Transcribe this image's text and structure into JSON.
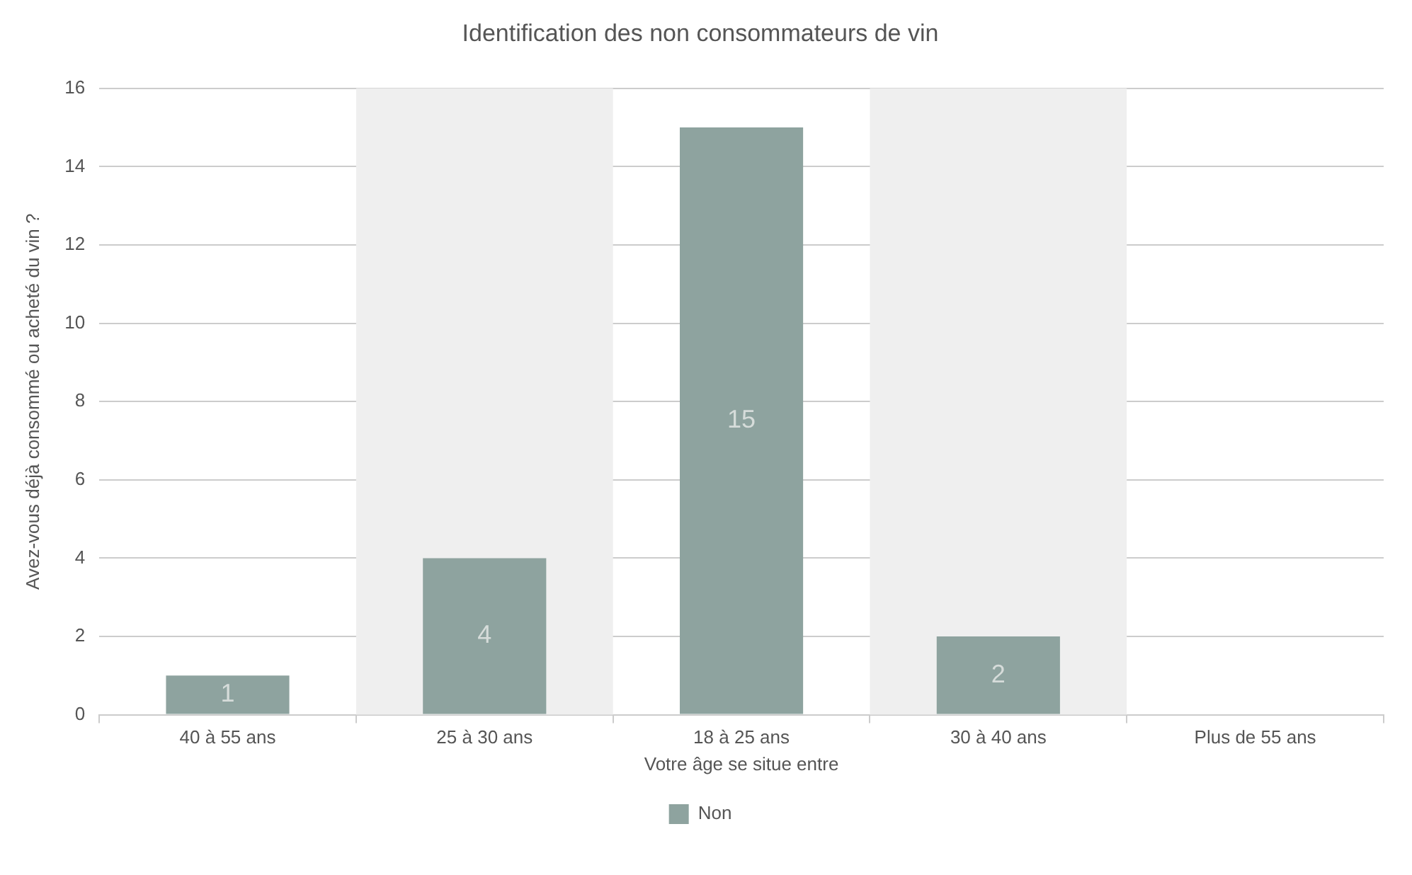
{
  "chart_data": {
    "type": "bar",
    "title": "Identification des non consommateurs de vin",
    "xlabel": "Votre âge se situe entre",
    "ylabel": "Avez-vous déjà consommé ou acheté du vin ?",
    "categories": [
      "40 à 55 ans",
      "25 à 30 ans",
      "18 à 25 ans",
      "30 à 40 ans",
      "Plus de 55 ans"
    ],
    "series": [
      {
        "name": "Non",
        "color": "#8ea39f",
        "values": [
          1,
          4,
          15,
          2,
          0
        ],
        "value_labels": [
          "1",
          "4",
          "15",
          "2",
          null
        ]
      }
    ],
    "ylim": [
      0,
      16
    ],
    "yticks": [
      0,
      2,
      4,
      6,
      8,
      10,
      12,
      14,
      16
    ],
    "grid": "y",
    "legend": "bottom",
    "bands": [
      {
        "axis": "x",
        "from": "25 à 30 ans",
        "to": "25 à 30 ans",
        "color": "#efefef"
      },
      {
        "axis": "x",
        "from": "30 à 40 ans",
        "to": "30 à 40 ans",
        "color": "#efefef"
      }
    ]
  }
}
